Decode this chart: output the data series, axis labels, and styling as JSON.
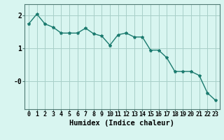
{
  "x": [
    0,
    1,
    2,
    3,
    4,
    5,
    6,
    7,
    8,
    9,
    10,
    11,
    12,
    13,
    14,
    15,
    16,
    17,
    18,
    19,
    20,
    21,
    22,
    23
  ],
  "y": [
    1.75,
    2.05,
    1.75,
    1.65,
    1.47,
    1.47,
    1.47,
    1.62,
    1.45,
    1.38,
    1.1,
    1.42,
    1.47,
    1.35,
    1.35,
    0.95,
    0.95,
    0.72,
    0.3,
    0.3,
    0.3,
    0.18,
    -0.35,
    -0.58
  ],
  "line_color": "#1a7a6e",
  "marker": "*",
  "marker_size": 3,
  "bg_color": "#d8f5f0",
  "grid_color": "#a8cfc8",
  "xlabel": "Humidex (Indice chaleur)",
  "xlabel_fontsize": 7.5,
  "tick_fontsize": 6,
  "ylim": [
    -0.85,
    2.35
  ],
  "xlim": [
    -0.5,
    23.5
  ],
  "line_width": 1.0
}
